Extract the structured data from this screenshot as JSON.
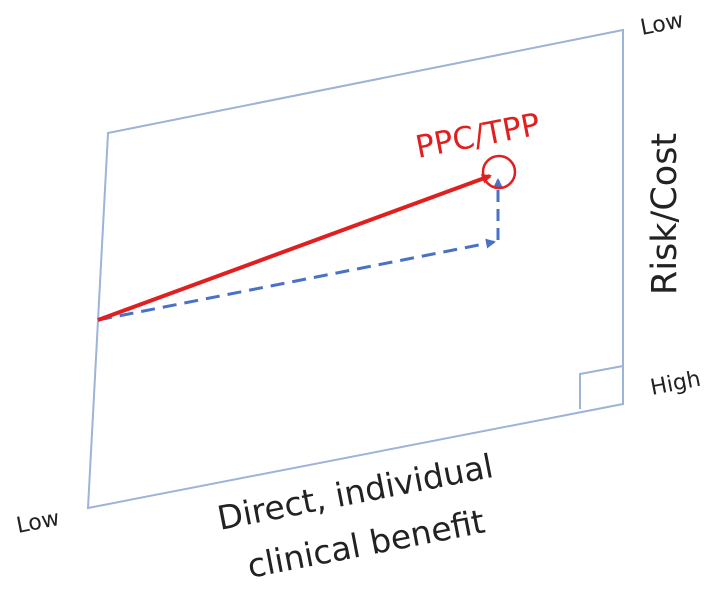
{
  "diagram": {
    "target_label": "PPC/TPP",
    "corner_labels": {
      "bottom_left": "Low",
      "top_right": "Low",
      "bottom_right": "High"
    },
    "x_axis_label_lines": [
      "Direct, individual",
      "clinical benefit"
    ],
    "y_axis_label": "Risk/Cost",
    "colors": {
      "frame": "#9db3d8",
      "solid_arrow": "#e02020",
      "dashed_arrow": "#4a72c4",
      "label_text": "#222222",
      "target_text": "#e02020"
    }
  }
}
